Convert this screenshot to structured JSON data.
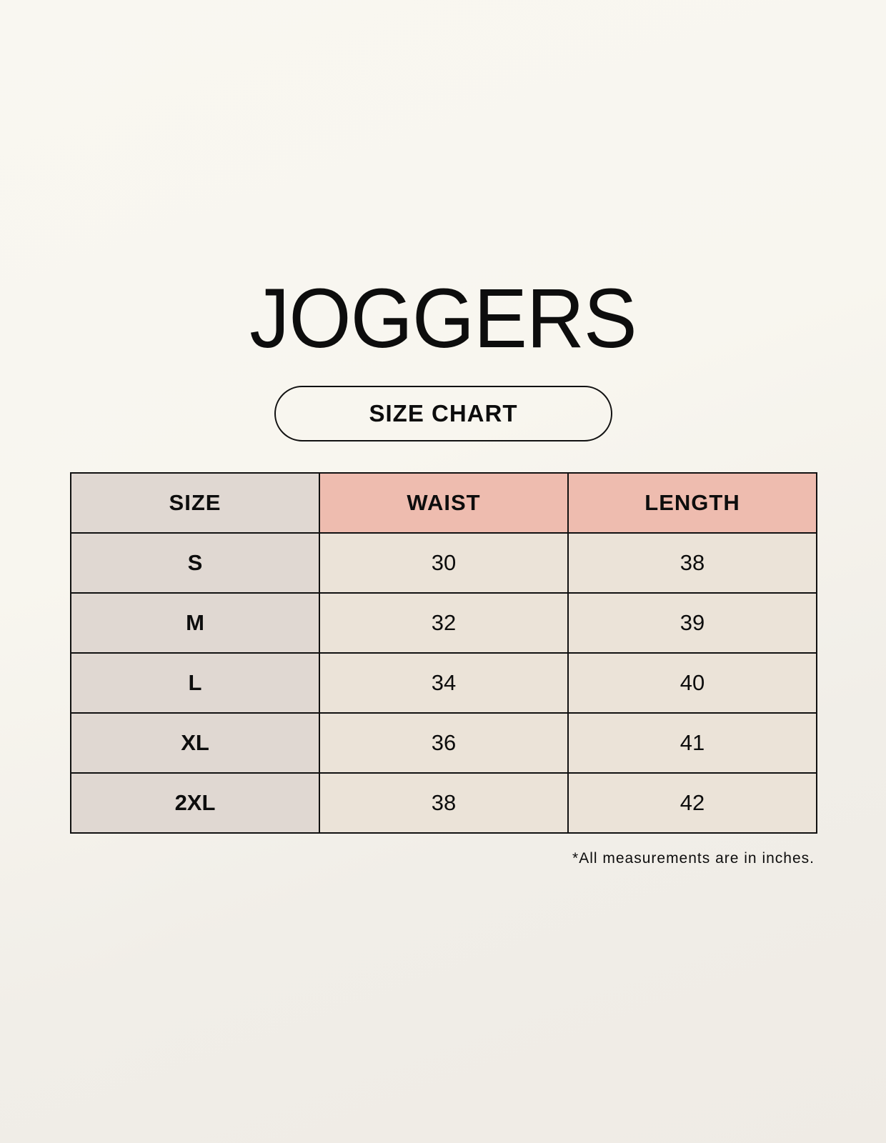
{
  "title": "JOGGERS",
  "subtitle": "SIZE CHART",
  "colors": {
    "background": "#f8f6ef",
    "size_column": "#e0d8d2",
    "header_highlight": "#eebcaf",
    "value_cells": "#ebe3d8"
  },
  "table": {
    "headers": [
      "SIZE",
      "WAIST",
      "LENGTH"
    ],
    "rows": [
      [
        "S",
        "30",
        "38"
      ],
      [
        "M",
        "32",
        "39"
      ],
      [
        "L",
        "34",
        "40"
      ],
      [
        "XL",
        "36",
        "41"
      ],
      [
        "2XL",
        "38",
        "42"
      ]
    ]
  },
  "footnote": "*All measurements are in inches."
}
